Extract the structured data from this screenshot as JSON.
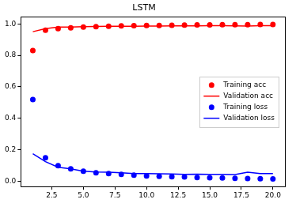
{
  "chart_data": {
    "type": "line",
    "title": "LSTM",
    "xlim": [
      0.05,
      20.95
    ],
    "ylim": [
      -0.033,
      1.045
    ],
    "xticks": [
      2.5,
      {
        "value": 5,
        "label": "5.0"
      },
      7.5,
      {
        "value": 10,
        "label": "10.0"
      },
      12.5,
      {
        "value": 15,
        "label": "15.0"
      },
      17.5,
      {
        "value": 20,
        "label": "20.0"
      }
    ],
    "yticks": [
      {
        "value": 0,
        "label": "0.0"
      },
      0.2,
      0.4,
      0.6,
      0.8,
      {
        "value": 1,
        "label": "1.0"
      }
    ],
    "grid": false,
    "legend": "center right",
    "x": [
      1,
      2,
      3,
      4,
      5,
      6,
      7,
      8,
      9,
      10,
      11,
      12,
      13,
      14,
      15,
      16,
      17,
      18,
      19,
      20
    ],
    "series": [
      {
        "name": "Training acc",
        "color": "#ff0000",
        "marker": "circle",
        "line_style": "none",
        "values": [
          0.83,
          0.96,
          0.97,
          0.975,
          0.98,
          0.982,
          0.985,
          0.987,
          0.988,
          0.99,
          0.99,
          0.991,
          0.992,
          0.993,
          0.993,
          0.994,
          0.995,
          0.995,
          0.996,
          0.996
        ]
      },
      {
        "name": "Validation acc",
        "color": "#ff0000",
        "marker": "none",
        "line_style": "solid",
        "values": [
          0.95,
          0.97,
          0.98,
          0.98,
          0.982,
          0.983,
          0.984,
          0.985,
          0.985,
          0.986,
          0.986,
          0.987,
          0.987,
          0.987,
          0.988,
          0.988,
          0.987,
          0.986,
          0.988,
          0.988
        ]
      },
      {
        "name": "Training loss",
        "color": "#0000ff",
        "marker": "circle",
        "line_style": "none",
        "values": [
          0.52,
          0.15,
          0.1,
          0.08,
          0.065,
          0.055,
          0.05,
          0.045,
          0.04,
          0.035,
          0.032,
          0.03,
          0.028,
          0.025,
          0.023,
          0.022,
          0.02,
          0.018,
          0.017,
          0.016
        ]
      },
      {
        "name": "Validation loss",
        "color": "#0000ff",
        "marker": "none",
        "line_style": "solid",
        "values": [
          0.175,
          0.125,
          0.09,
          0.08,
          0.065,
          0.06,
          0.058,
          0.055,
          0.05,
          0.05,
          0.048,
          0.047,
          0.045,
          0.046,
          0.045,
          0.044,
          0.043,
          0.058,
          0.05,
          0.05
        ]
      }
    ]
  }
}
